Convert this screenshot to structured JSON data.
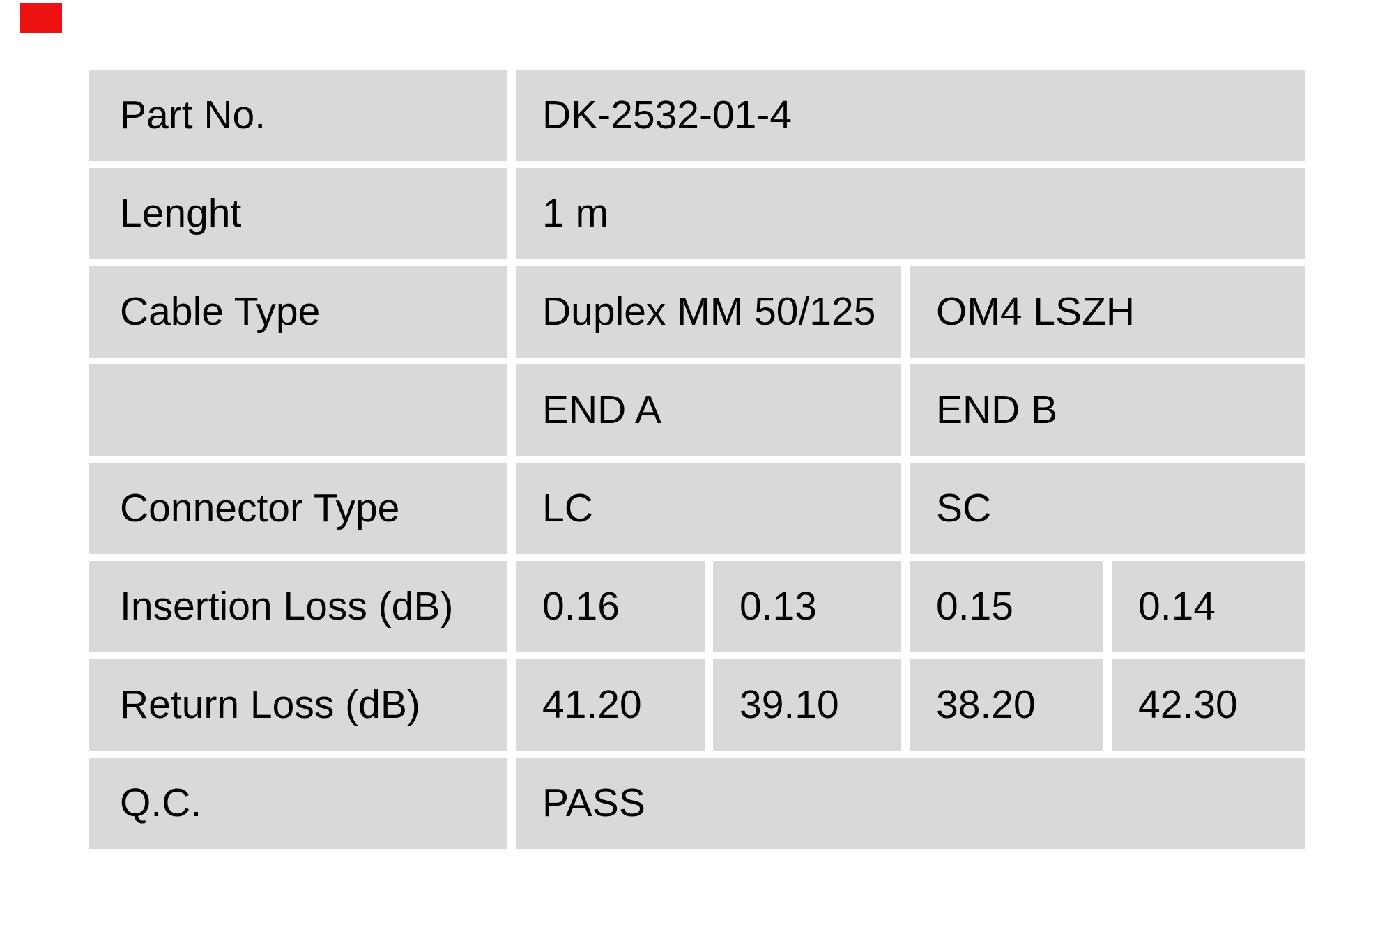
{
  "page": {
    "background_color": "#ffffff",
    "marker_color": "#ee1111",
    "cell_background_color": "#d9d9d9",
    "text_color": "#000000"
  },
  "table": {
    "rows": {
      "part_no": {
        "label": "Part No.",
        "value": "DK-2532-01-4"
      },
      "length": {
        "label": "Lenght",
        "value": "1 m"
      },
      "cable_type": {
        "label": "Cable Type",
        "end_a": "Duplex MM 50/125",
        "end_b": "OM4 LSZH"
      },
      "ends_header": {
        "label": "",
        "end_a": "END A",
        "end_b": "END B"
      },
      "connector_type": {
        "label": "Connector Type",
        "end_a": "LC",
        "end_b": "SC"
      },
      "insertion_loss": {
        "label": "Insertion Loss (dB)",
        "values": [
          "0.16",
          "0.13",
          "0.15",
          "0.14"
        ]
      },
      "return_loss": {
        "label": "Return Loss (dB)",
        "values": [
          "41.20",
          "39.10",
          "38.20",
          "42.30"
        ]
      },
      "qc": {
        "label": "Q.C.",
        "value": "PASS"
      }
    }
  }
}
